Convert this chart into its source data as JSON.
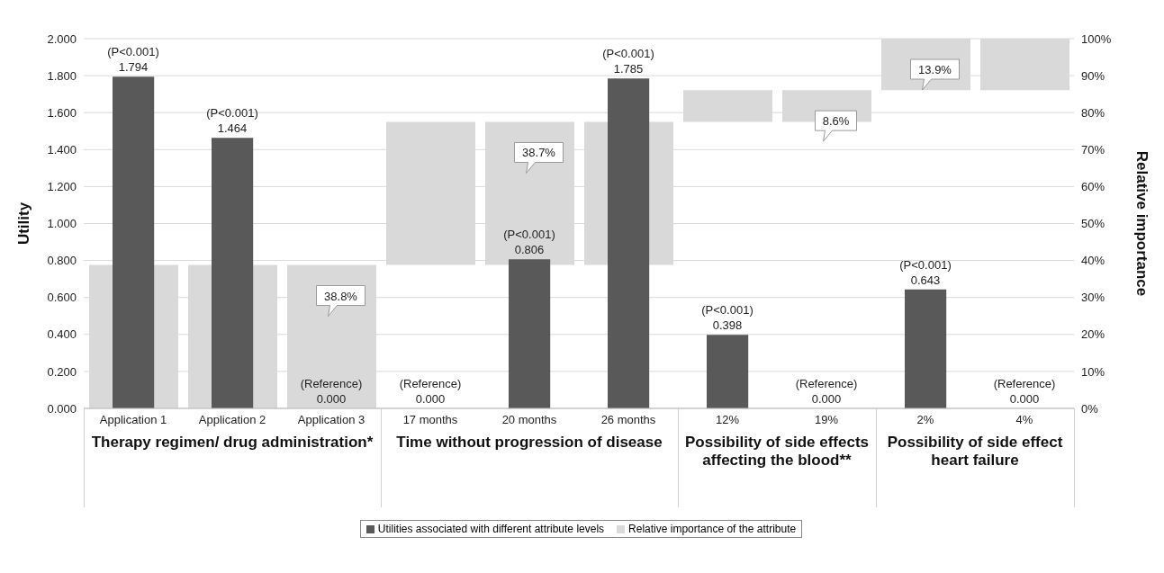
{
  "chart_data": {
    "type": "bar",
    "ylabel": "Utility",
    "y2label": "Relative importance",
    "categories": [
      "Application 1",
      "Application 2",
      "Application 3",
      "17 months",
      "20 months",
      "26 months",
      "12%",
      "19%",
      "2%",
      "4%"
    ],
    "series": [
      {
        "name": "Utilities associated with different attribute levels",
        "color": "#595959",
        "axis": "y",
        "values": [
          1.794,
          1.464,
          0,
          0,
          0.806,
          1.785,
          0.398,
          0,
          0.643,
          0
        ],
        "value_labels": [
          "(P<0.001)\n1.794",
          "(P<0.001)\n1.464",
          "(Reference)\n0.000",
          "(Reference)\n0.000",
          "(P<0.001)\n0.806",
          "(P<0.001)\n1.785",
          "(P<0.001)\n0.398",
          "(Reference)\n0.000",
          "(P<0.001)\n0.643",
          "(Reference)\n0.000"
        ]
      },
      {
        "name": "Relative importance of the attribute",
        "color": "#d9d9d9",
        "axis": "y2",
        "base": [
          0,
          0,
          0,
          38.8,
          38.8,
          38.8,
          77.5,
          77.5,
          86.1,
          86.1
        ],
        "values": [
          38.8,
          38.8,
          38.8,
          38.7,
          38.7,
          38.7,
          8.6,
          8.6,
          13.9,
          13.9
        ],
        "value_labels": [
          null,
          null,
          "38.8%",
          null,
          "38.7%",
          null,
          null,
          "8.6%",
          "13.9%",
          null
        ]
      }
    ],
    "annotations": [
      "Therapy regimen/ drug administration*",
      "Time without progression of disease",
      "Possibility of side effects affecting the blood**",
      "Possibility of side effect heart failure"
    ],
    "ylim": [
      0,
      2
    ],
    "yticks": [
      {
        "value": 0,
        "label": "0.000"
      },
      {
        "value": 0.2,
        "label": "0.200"
      },
      {
        "value": 0.4,
        "label": "0.400"
      },
      {
        "value": 0.6,
        "label": "0.600"
      },
      {
        "value": 0.8,
        "label": "0.800"
      },
      {
        "value": 1,
        "label": "1.000"
      },
      {
        "value": 1.2,
        "label": "1.200"
      },
      {
        "value": 1.4,
        "label": "1.400"
      },
      {
        "value": 1.6,
        "label": "1.600"
      },
      {
        "value": 1.8,
        "label": "1.800"
      },
      {
        "value": 2,
        "label": "2.000"
      }
    ],
    "y2lim": [
      0,
      100
    ],
    "y2ticks": [
      {
        "value": 0,
        "label": "0%"
      },
      {
        "value": 10,
        "label": "10%"
      },
      {
        "value": 20,
        "label": "20%"
      },
      {
        "value": 30,
        "label": "30%"
      },
      {
        "value": 40,
        "label": "40%"
      },
      {
        "value": 50,
        "label": "50%"
      },
      {
        "value": 60,
        "label": "60%"
      },
      {
        "value": 70,
        "label": "70%"
      },
      {
        "value": 80,
        "label": "80%"
      },
      {
        "value": 90,
        "label": "90%"
      },
      {
        "value": 100,
        "label": "100%"
      }
    ],
    "grid": "y",
    "legend": "bottom"
  }
}
